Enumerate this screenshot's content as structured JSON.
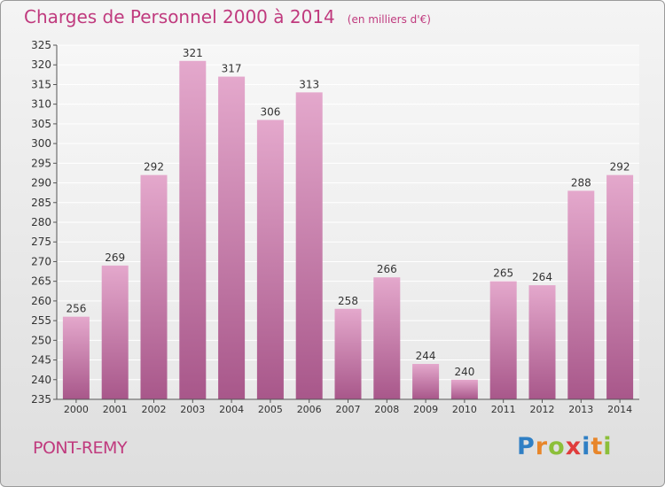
{
  "chart_data": {
    "type": "bar",
    "title": "Charges de Personnel 2000 à 2014",
    "subtitle": "(en milliers d'€)",
    "categories": [
      "2000",
      "2001",
      "2002",
      "2003",
      "2004",
      "2005",
      "2006",
      "2007",
      "2008",
      "2009",
      "2010",
      "2011",
      "2012",
      "2013",
      "2014"
    ],
    "values": [
      256,
      269,
      292,
      321,
      317,
      306,
      313,
      258,
      266,
      244,
      240,
      265,
      264,
      288,
      292
    ],
    "ylim": [
      235,
      325
    ],
    "ytick_step": 5,
    "grid": true,
    "bar_color": "#c46b9e"
  },
  "footer": {
    "commune": "PONT-REMY",
    "logo": "Proxiti"
  }
}
